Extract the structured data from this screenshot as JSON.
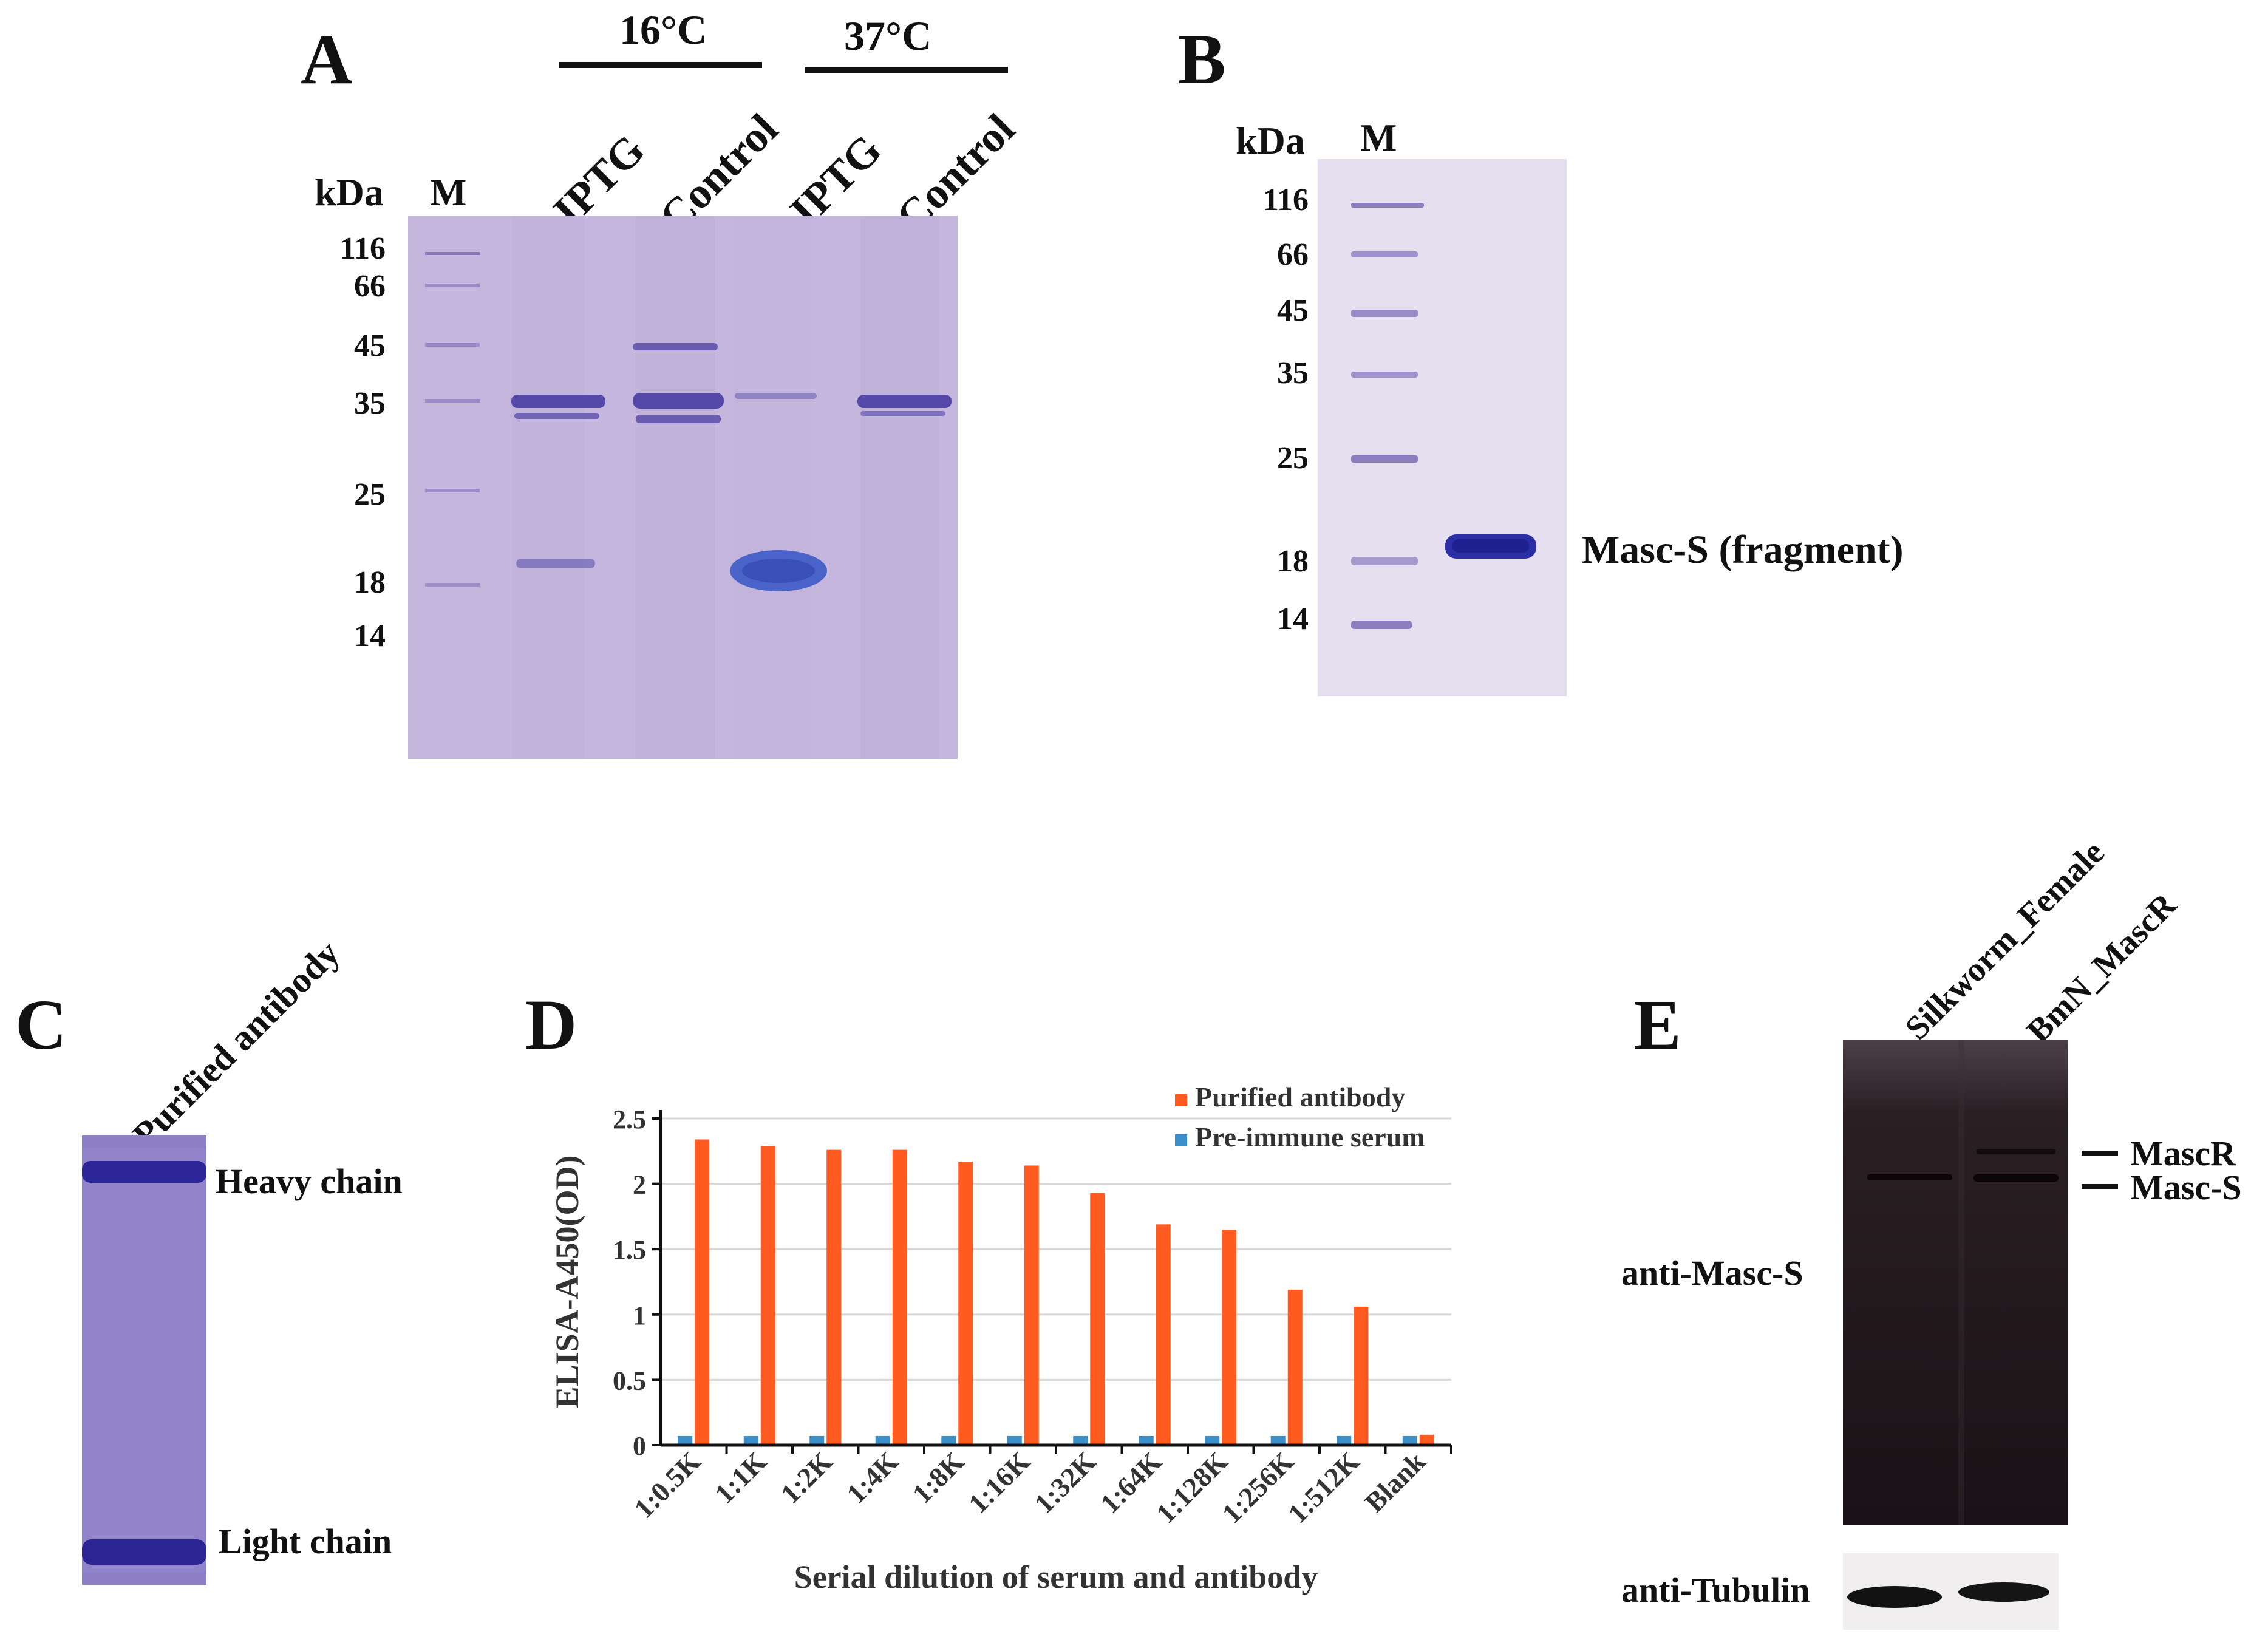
{
  "panels": {
    "A": {
      "label": "A",
      "kda_label": "kDa",
      "marker_label": "M",
      "temp_16": "16°C",
      "temp_37": "37°C",
      "lanes": [
        "IPTG",
        "Control",
        "IPTG",
        "Control"
      ],
      "mw": [
        "116",
        "66",
        "45",
        "35",
        "25",
        "18",
        "14"
      ]
    },
    "B": {
      "label": "B",
      "kda_label": "kDa",
      "marker_label": "M",
      "mw": [
        "116",
        "66",
        "45",
        "35",
        "25",
        "18",
        "14"
      ],
      "band_label": "Masc-S (fragment)"
    },
    "C": {
      "label": "C",
      "lane_label": "Purified antibody",
      "heavy": "Heavy chain",
      "light": "Light chain"
    },
    "D": {
      "label": "D"
    },
    "E": {
      "label": "E",
      "lanes": [
        "Silkworm_Female",
        "BmN_MascR"
      ],
      "mascr": "MascR",
      "mascs": "Masc-S",
      "anti_masc": "anti-Masc-S",
      "anti_tub": "anti-Tubulin"
    }
  },
  "chart_data": {
    "type": "bar",
    "categories": [
      "1:0.5K",
      "1:1K",
      "1:2K",
      "1:4K",
      "1:8K",
      "1:16K",
      "1:32K",
      "1:64K",
      "1:128K",
      "1:256K",
      "1:512K",
      "Blank"
    ],
    "series": [
      {
        "name": "Purified antibody",
        "color": "#ff5a1f",
        "values": [
          2.34,
          2.29,
          2.26,
          2.26,
          2.17,
          2.14,
          1.93,
          1.69,
          1.65,
          1.19,
          1.06,
          0.08
        ]
      },
      {
        "name": "Pre-immune serum",
        "color": "#3b8fc8",
        "values": [
          0.07,
          0.07,
          0.07,
          0.07,
          0.07,
          0.07,
          0.07,
          0.07,
          0.07,
          0.07,
          0.07,
          0.07
        ]
      }
    ],
    "ylabel": "ELISA-A450(OD)",
    "xlabel": "Serial dilution of serum and antibody",
    "ylim": [
      0,
      2.5
    ],
    "yticks": [
      "0",
      "0.5",
      "1",
      "1.5",
      "2",
      "2.5"
    ],
    "grid": true,
    "legend": "top-right"
  }
}
